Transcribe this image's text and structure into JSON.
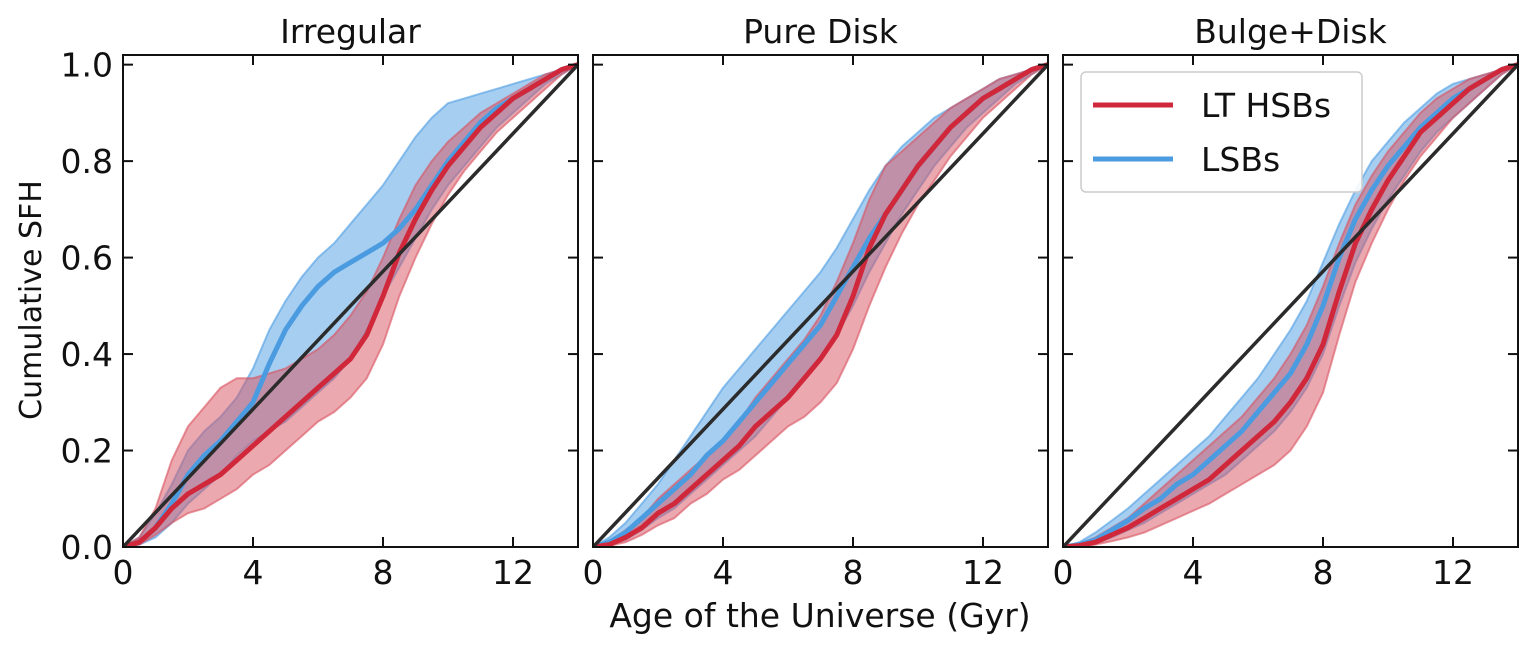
{
  "figure": {
    "ylabel": "Cumulative SFH",
    "xlabel": "Age of the Universe (Gyr)"
  },
  "legend": {
    "placement": "upper-left of third panel",
    "entries": [
      {
        "label": "LT HSBs",
        "color": "#d0283a"
      },
      {
        "label": "LSBs",
        "color": "#4b9be0"
      }
    ]
  },
  "colors": {
    "lt_hsb_line": "#d0283a",
    "lt_hsb_band": "#d9525f",
    "lsb_line": "#4b9be0",
    "lsb_band": "#4d9de3",
    "reference_line": "#2b2b2b"
  },
  "chart_data": [
    {
      "type": "line",
      "title": "Irregular",
      "xlim": [
        0,
        14
      ],
      "ylim": [
        0,
        1.02
      ],
      "xticks": [
        0,
        4,
        8,
        12
      ],
      "yticks": [
        0.0,
        0.2,
        0.4,
        0.6,
        0.8,
        1.0
      ],
      "ytick_labels": [
        "0.0",
        "0.2",
        "0.4",
        "0.6",
        "0.8",
        "1.0"
      ],
      "x": [
        0,
        0.5,
        1,
        1.5,
        2,
        2.5,
        3,
        3.5,
        4,
        4.5,
        5,
        5.5,
        6,
        6.5,
        7,
        7.5,
        8,
        8.5,
        9,
        9.5,
        10,
        10.5,
        11,
        11.5,
        12,
        12.5,
        13,
        13.5,
        14
      ],
      "series": [
        {
          "name": "LT HSBs",
          "values": [
            0,
            0.01,
            0.04,
            0.08,
            0.11,
            0.13,
            0.15,
            0.18,
            0.21,
            0.24,
            0.27,
            0.3,
            0.33,
            0.36,
            0.39,
            0.44,
            0.52,
            0.61,
            0.68,
            0.74,
            0.79,
            0.83,
            0.87,
            0.9,
            0.93,
            0.95,
            0.97,
            0.99,
            1.0
          ],
          "lower": [
            0,
            0.005,
            0.025,
            0.05,
            0.07,
            0.08,
            0.1,
            0.12,
            0.15,
            0.17,
            0.2,
            0.23,
            0.26,
            0.28,
            0.31,
            0.35,
            0.42,
            0.52,
            0.6,
            0.67,
            0.73,
            0.78,
            0.82,
            0.86,
            0.89,
            0.92,
            0.95,
            0.98,
            1.0
          ],
          "upper": [
            0,
            0.02,
            0.08,
            0.18,
            0.25,
            0.29,
            0.33,
            0.35,
            0.35,
            0.36,
            0.37,
            0.39,
            0.41,
            0.44,
            0.48,
            0.53,
            0.6,
            0.68,
            0.75,
            0.8,
            0.84,
            0.87,
            0.9,
            0.92,
            0.94,
            0.96,
            0.98,
            0.99,
            1.0
          ]
        },
        {
          "name": "LSBs",
          "values": [
            0,
            0.01,
            0.04,
            0.09,
            0.15,
            0.19,
            0.22,
            0.26,
            0.3,
            0.38,
            0.45,
            0.5,
            0.54,
            0.57,
            0.59,
            0.61,
            0.63,
            0.66,
            0.7,
            0.75,
            0.8,
            0.84,
            0.88,
            0.91,
            0.93,
            0.95,
            0.97,
            0.99,
            1.0
          ],
          "lower": [
            0,
            0.005,
            0.02,
            0.05,
            0.09,
            0.12,
            0.15,
            0.19,
            0.22,
            0.24,
            0.26,
            0.29,
            0.32,
            0.35,
            0.39,
            0.45,
            0.52,
            0.58,
            0.64,
            0.7,
            0.75,
            0.79,
            0.83,
            0.87,
            0.9,
            0.93,
            0.96,
            0.98,
            1.0
          ],
          "upper": [
            0,
            0.02,
            0.07,
            0.13,
            0.2,
            0.24,
            0.27,
            0.31,
            0.37,
            0.45,
            0.51,
            0.56,
            0.6,
            0.63,
            0.67,
            0.71,
            0.75,
            0.8,
            0.85,
            0.89,
            0.92,
            0.93,
            0.94,
            0.95,
            0.96,
            0.97,
            0.98,
            0.99,
            1.0
          ]
        }
      ],
      "reference": {
        "x": [
          0,
          14
        ],
        "y": [
          0,
          1
        ]
      }
    },
    {
      "type": "line",
      "title": "Pure Disk",
      "xlim": [
        0,
        14
      ],
      "ylim": [
        0,
        1.02
      ],
      "xticks": [
        0,
        4,
        8,
        12
      ],
      "yticks": [
        0.0,
        0.2,
        0.4,
        0.6,
        0.8,
        1.0
      ],
      "x": [
        0,
        0.5,
        1,
        1.5,
        2,
        2.5,
        3,
        3.5,
        4,
        4.5,
        5,
        5.5,
        6,
        6.5,
        7,
        7.5,
        8,
        8.5,
        9,
        9.5,
        10,
        10.5,
        11,
        11.5,
        12,
        12.5,
        13,
        13.5,
        14
      ],
      "series": [
        {
          "name": "LT HSBs",
          "values": [
            0,
            0.005,
            0.02,
            0.04,
            0.07,
            0.09,
            0.12,
            0.15,
            0.18,
            0.21,
            0.25,
            0.28,
            0.31,
            0.35,
            0.39,
            0.44,
            0.52,
            0.62,
            0.69,
            0.74,
            0.79,
            0.83,
            0.87,
            0.9,
            0.93,
            0.95,
            0.97,
            0.99,
            1.0
          ],
          "lower": [
            0,
            0.002,
            0.01,
            0.025,
            0.045,
            0.06,
            0.09,
            0.11,
            0.14,
            0.16,
            0.19,
            0.22,
            0.25,
            0.27,
            0.3,
            0.34,
            0.41,
            0.5,
            0.58,
            0.65,
            0.71,
            0.76,
            0.81,
            0.85,
            0.89,
            0.92,
            0.95,
            0.98,
            1.0
          ],
          "upper": [
            0,
            0.01,
            0.035,
            0.06,
            0.1,
            0.13,
            0.16,
            0.19,
            0.22,
            0.26,
            0.31,
            0.35,
            0.39,
            0.43,
            0.48,
            0.55,
            0.63,
            0.72,
            0.79,
            0.82,
            0.85,
            0.88,
            0.91,
            0.93,
            0.95,
            0.97,
            0.98,
            0.99,
            1.0
          ]
        },
        {
          "name": "LSBs",
          "values": [
            0,
            0.01,
            0.03,
            0.06,
            0.09,
            0.12,
            0.15,
            0.19,
            0.22,
            0.26,
            0.3,
            0.34,
            0.38,
            0.42,
            0.46,
            0.52,
            0.58,
            0.64,
            0.69,
            0.74,
            0.79,
            0.83,
            0.87,
            0.9,
            0.93,
            0.95,
            0.97,
            0.99,
            1.0
          ],
          "lower": [
            0,
            0.005,
            0.015,
            0.035,
            0.06,
            0.08,
            0.11,
            0.14,
            0.17,
            0.2,
            0.23,
            0.27,
            0.31,
            0.35,
            0.39,
            0.44,
            0.5,
            0.57,
            0.63,
            0.69,
            0.74,
            0.79,
            0.83,
            0.87,
            0.9,
            0.93,
            0.96,
            0.98,
            1.0
          ],
          "upper": [
            0,
            0.02,
            0.05,
            0.09,
            0.13,
            0.18,
            0.23,
            0.28,
            0.33,
            0.37,
            0.41,
            0.45,
            0.49,
            0.53,
            0.57,
            0.62,
            0.68,
            0.74,
            0.79,
            0.83,
            0.86,
            0.89,
            0.91,
            0.93,
            0.95,
            0.97,
            0.98,
            0.99,
            1.0
          ]
        }
      ],
      "reference": {
        "x": [
          0,
          14
        ],
        "y": [
          0,
          1
        ]
      }
    },
    {
      "type": "line",
      "title": "Bulge+Disk",
      "xlim": [
        0,
        14
      ],
      "ylim": [
        0,
        1.02
      ],
      "xticks": [
        0,
        4,
        8,
        12
      ],
      "yticks": [
        0.0,
        0.2,
        0.4,
        0.6,
        0.8,
        1.0
      ],
      "x": [
        0,
        0.5,
        1,
        1.5,
        2,
        2.5,
        3,
        3.5,
        4,
        4.5,
        5,
        5.5,
        6,
        6.5,
        7,
        7.5,
        8,
        8.5,
        9,
        9.5,
        10,
        10.5,
        11,
        11.5,
        12,
        12.5,
        13,
        13.5,
        14
      ],
      "series": [
        {
          "name": "LT HSBs",
          "values": [
            0,
            0.003,
            0.01,
            0.025,
            0.04,
            0.06,
            0.08,
            0.1,
            0.12,
            0.14,
            0.17,
            0.2,
            0.23,
            0.26,
            0.3,
            0.35,
            0.42,
            0.53,
            0.63,
            0.7,
            0.76,
            0.81,
            0.86,
            0.89,
            0.92,
            0.95,
            0.97,
            0.99,
            1.0
          ],
          "lower": [
            0,
            0.001,
            0.005,
            0.012,
            0.02,
            0.03,
            0.045,
            0.06,
            0.075,
            0.09,
            0.11,
            0.13,
            0.15,
            0.17,
            0.2,
            0.25,
            0.32,
            0.44,
            0.55,
            0.63,
            0.7,
            0.76,
            0.81,
            0.85,
            0.89,
            0.92,
            0.95,
            0.98,
            1.0
          ],
          "upper": [
            0,
            0.006,
            0.02,
            0.04,
            0.06,
            0.09,
            0.12,
            0.15,
            0.18,
            0.21,
            0.24,
            0.27,
            0.31,
            0.35,
            0.4,
            0.46,
            0.54,
            0.63,
            0.71,
            0.77,
            0.82,
            0.86,
            0.9,
            0.93,
            0.95,
            0.97,
            0.98,
            0.99,
            1.0
          ]
        },
        {
          "name": "LSBs",
          "values": [
            0,
            0.005,
            0.015,
            0.035,
            0.055,
            0.08,
            0.1,
            0.13,
            0.15,
            0.18,
            0.21,
            0.24,
            0.28,
            0.32,
            0.36,
            0.42,
            0.5,
            0.6,
            0.68,
            0.74,
            0.79,
            0.83,
            0.87,
            0.9,
            0.93,
            0.95,
            0.97,
            0.99,
            1.0
          ],
          "lower": [
            0,
            0.002,
            0.008,
            0.02,
            0.035,
            0.05,
            0.07,
            0.09,
            0.11,
            0.13,
            0.15,
            0.18,
            0.21,
            0.24,
            0.28,
            0.33,
            0.4,
            0.5,
            0.59,
            0.66,
            0.72,
            0.77,
            0.82,
            0.86,
            0.89,
            0.92,
            0.95,
            0.98,
            1.0
          ],
          "upper": [
            0,
            0.01,
            0.03,
            0.055,
            0.08,
            0.11,
            0.14,
            0.17,
            0.2,
            0.23,
            0.27,
            0.31,
            0.35,
            0.4,
            0.45,
            0.51,
            0.59,
            0.67,
            0.74,
            0.8,
            0.84,
            0.88,
            0.91,
            0.94,
            0.96,
            0.97,
            0.98,
            0.99,
            1.0
          ]
        }
      ],
      "reference": {
        "x": [
          0,
          14
        ],
        "y": [
          0,
          1
        ]
      }
    }
  ]
}
